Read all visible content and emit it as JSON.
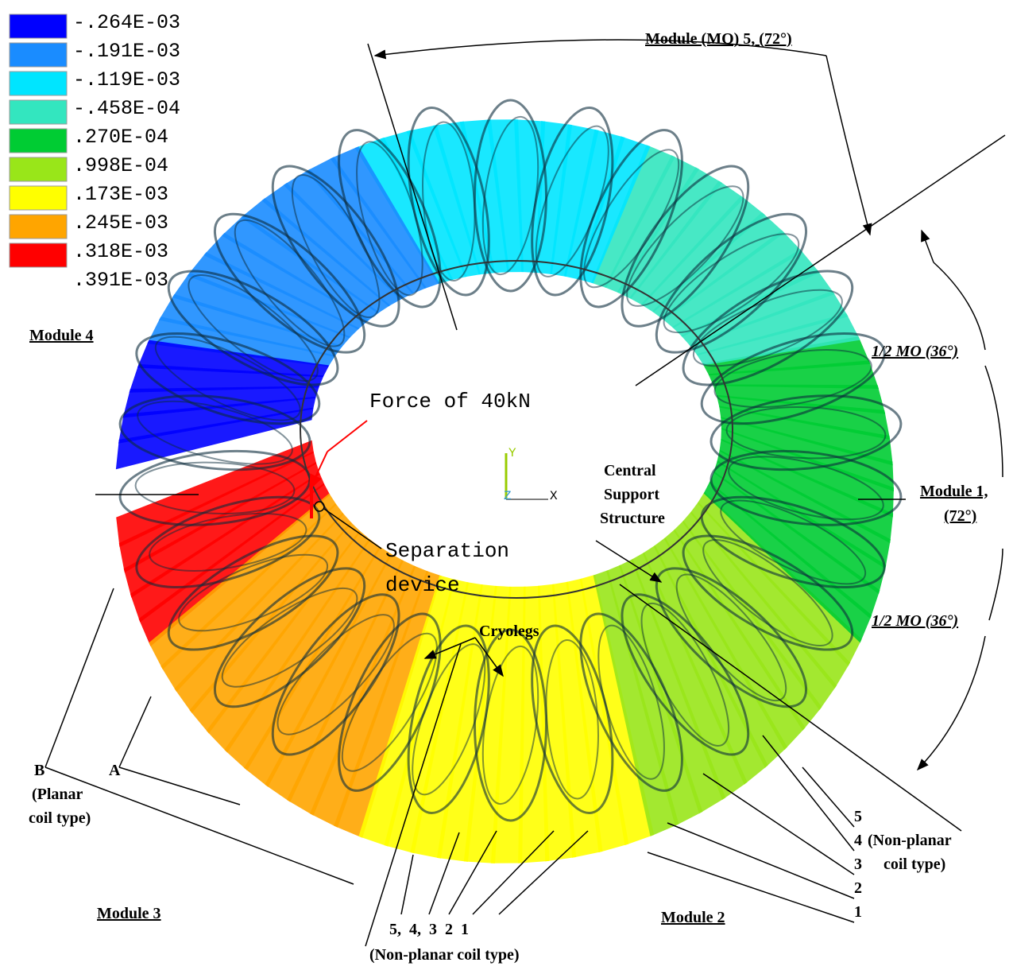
{
  "legend": {
    "colors": [
      "#0000ff",
      "#1a8cff",
      "#00e5ff",
      "#33e6bf",
      "#00cc33",
      "#99e619",
      "#ffff00",
      "#ffa500",
      "#ff0000"
    ],
    "labels": [
      "-.264E-03",
      "-.191E-03",
      "-.119E-03",
      "-.458E-04",
      ".270E-04",
      ".998E-04",
      ".173E-03",
      ".245E-03",
      ".318E-03",
      ".391E-03"
    ]
  },
  "annotations": {
    "module5": "Module (MO) 5, (72°)",
    "module4": "Module 4",
    "half_mo_top": "1/2 MO (36°)",
    "force": "Force of 40kN",
    "central": [
      "Central",
      "Support",
      "Structure"
    ],
    "module1": [
      "Module 1,",
      "(72°)"
    ],
    "separation": [
      "Separation",
      "device"
    ],
    "half_mo_bottom": "1/2 MO (36°)",
    "cryolegs": "Cryolegs",
    "b": "B",
    "a": "A",
    "planar": [
      "(Planar",
      "coil type)"
    ],
    "right_numbers": [
      "5",
      "4",
      "3",
      "2",
      "1"
    ],
    "nonplanar_right": [
      "(Non-planar",
      "coil type)"
    ],
    "module3": "Module  3",
    "module2": "Module 2",
    "bottom_numbers": "5,  4,  3  2  1",
    "nonplanar_bottom": "(Non-planar coil type)"
  },
  "axes": {
    "y": "Y",
    "z": "Z",
    "x": "X"
  }
}
